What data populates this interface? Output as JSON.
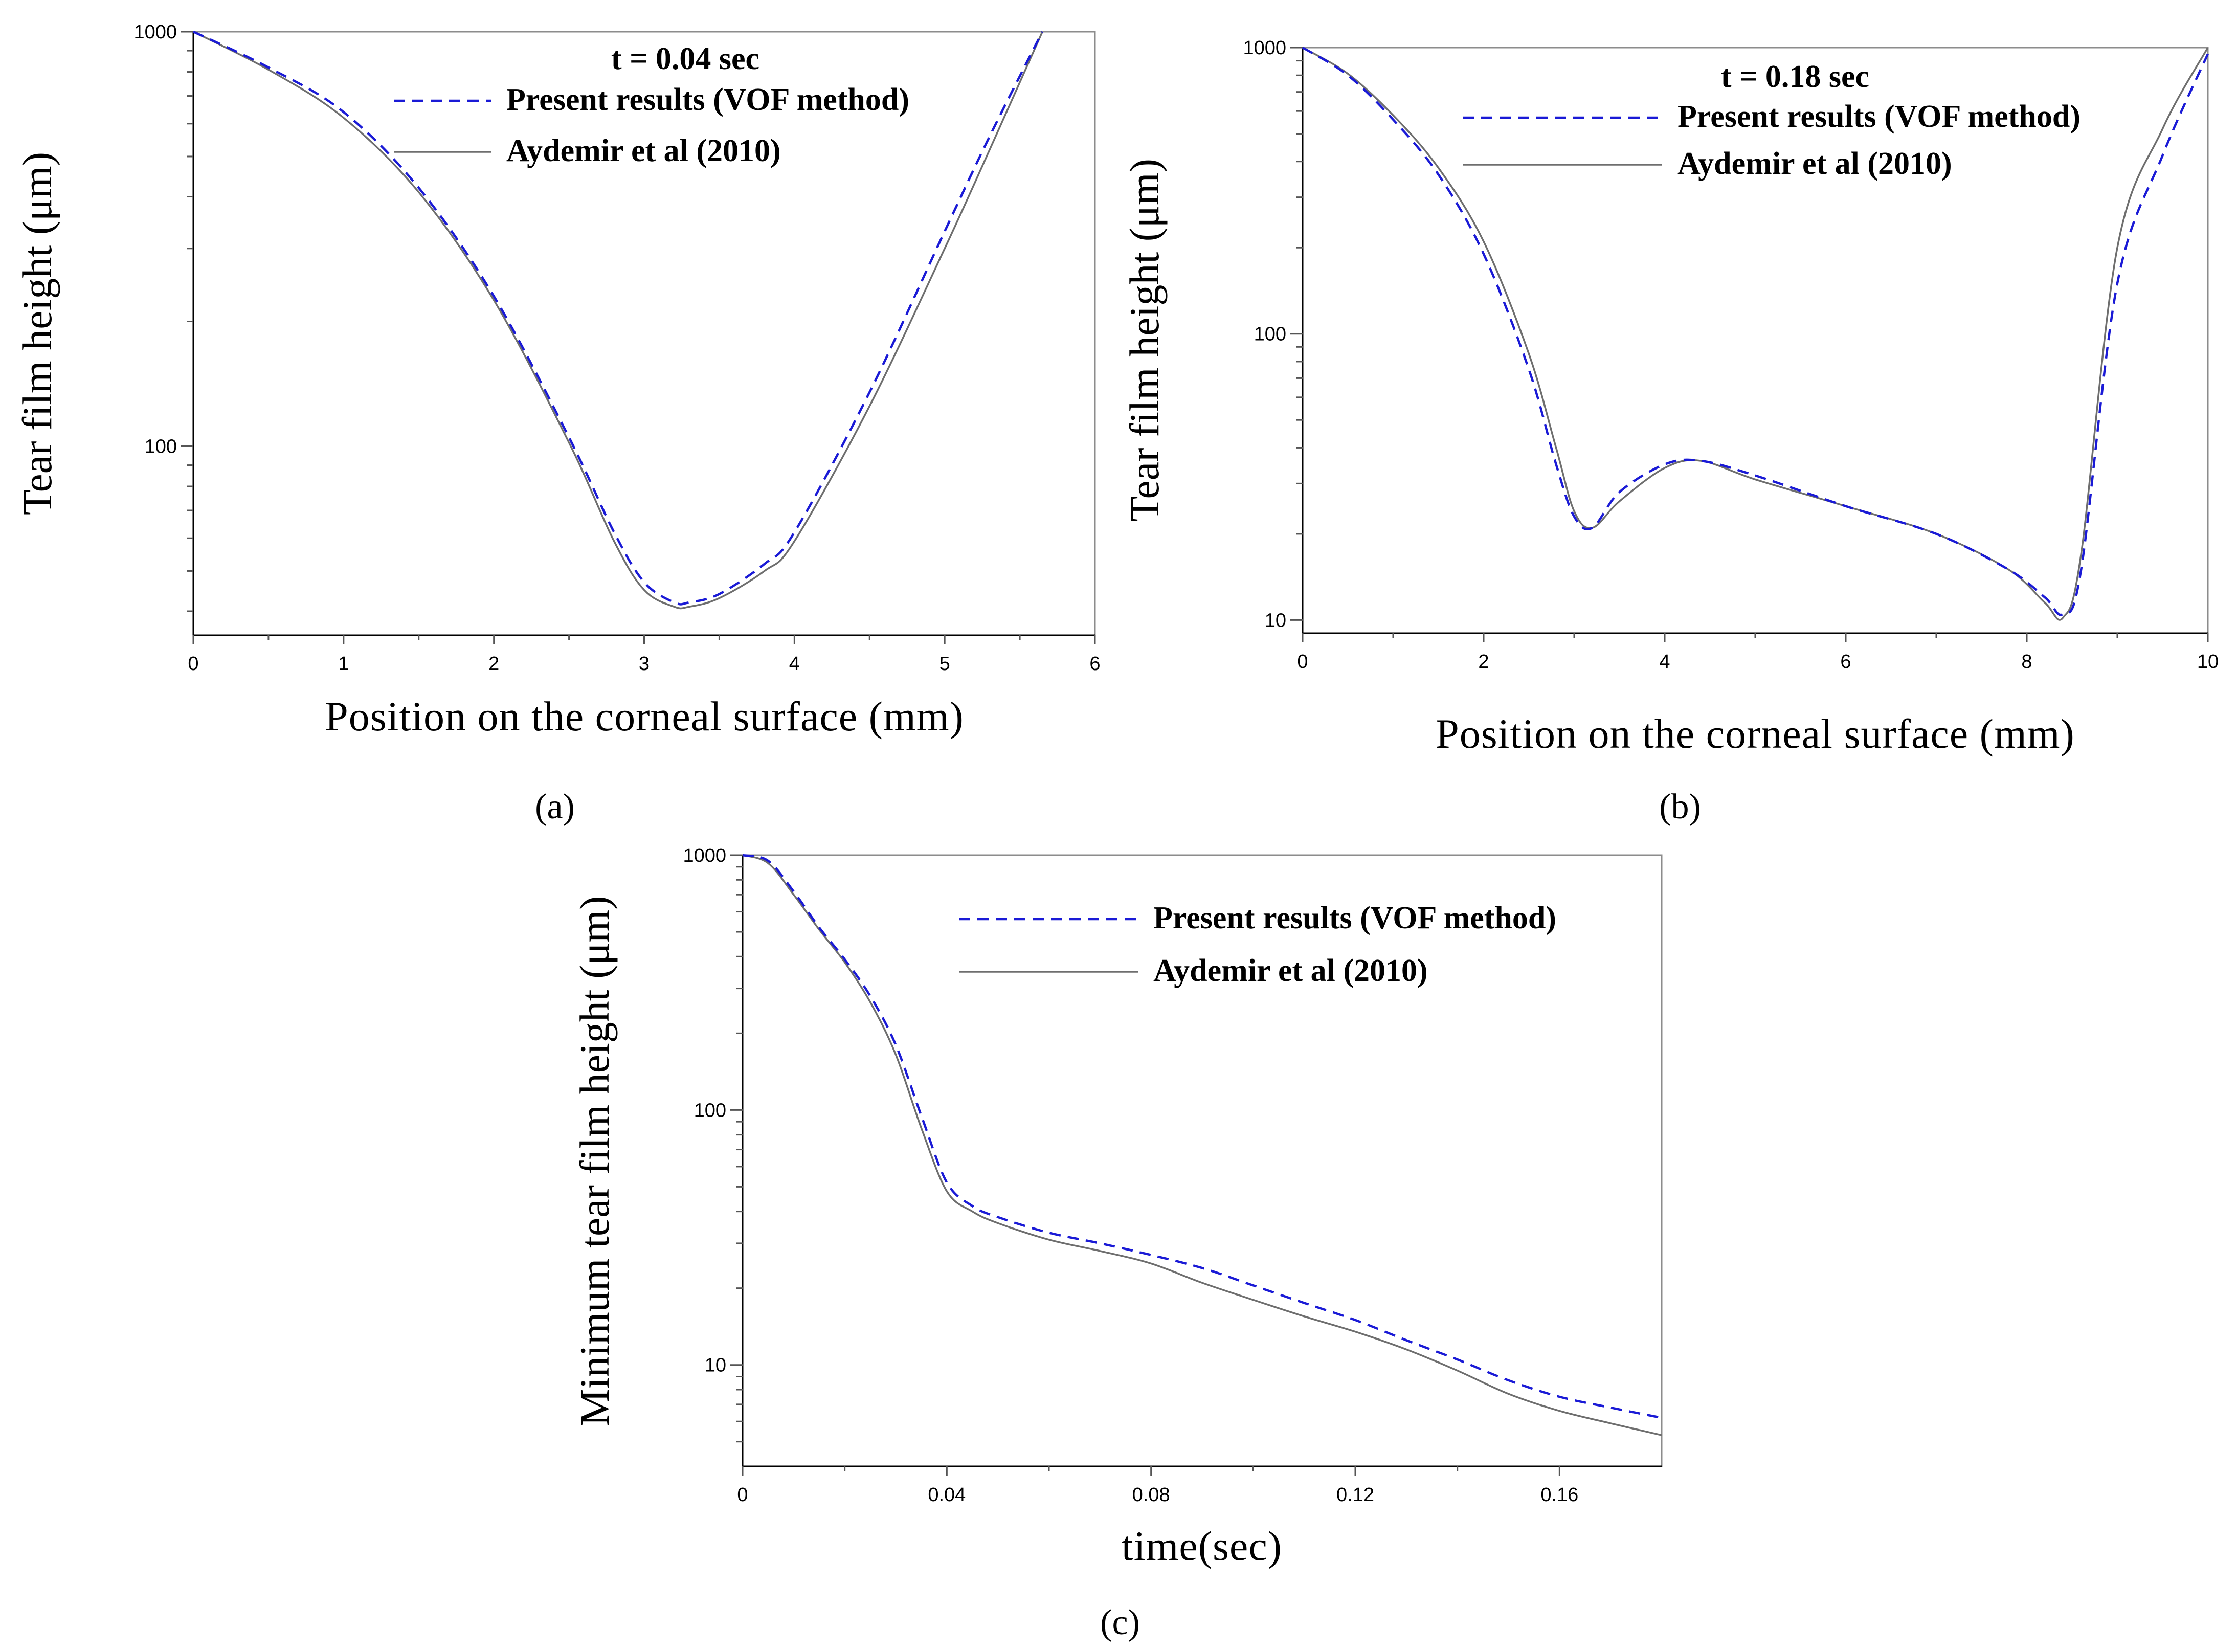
{
  "chart_data": [
    {
      "id": "a",
      "type": "line",
      "panel_label": "(a)",
      "annotation": "t = 0.04 sec",
      "xlabel": "Position on the corneal surface (mm)",
      "ylabel": "Tear film height (μm)",
      "xlim": [
        0,
        6
      ],
      "ylim": [
        35,
        1000
      ],
      "yscale": "log",
      "xticks": [
        "0",
        "1",
        "2",
        "3",
        "4",
        "5",
        "6"
      ],
      "yticks": [
        "100",
        "1000"
      ],
      "legend": [
        "Present results (VOF method)",
        "Aydemir et al (2010)"
      ],
      "series": [
        {
          "name": "Present results (VOF method)",
          "x": [
            0,
            0.5,
            1.0,
            1.5,
            2.0,
            2.5,
            2.8,
            3.0,
            3.2,
            3.3,
            3.5,
            3.8,
            4.0,
            4.5,
            5.0,
            5.3,
            5.65
          ],
          "y": [
            1000,
            820,
            640,
            420,
            230,
            105,
            62,
            47,
            42,
            42,
            44,
            52,
            62,
            135,
            330,
            560,
            1000
          ]
        },
        {
          "name": "Aydemir et al (2010)",
          "x": [
            0,
            0.5,
            1.0,
            1.5,
            2.0,
            2.5,
            2.8,
            3.0,
            3.2,
            3.3,
            3.5,
            3.8,
            4.0,
            4.5,
            5.0,
            5.3,
            5.65
          ],
          "y": [
            1000,
            810,
            620,
            410,
            225,
            102,
            59,
            45,
            41,
            41,
            43,
            50,
            59,
            125,
            300,
            520,
            1000
          ]
        }
      ]
    },
    {
      "id": "b",
      "type": "line",
      "panel_label": "(b)",
      "annotation": "t = 0.18 sec",
      "xlabel": "Position on the corneal surface (mm)",
      "ylabel": "Tear film height (μm)",
      "xlim": [
        0,
        10
      ],
      "ylim": [
        9,
        1000
      ],
      "yscale": "log",
      "xticks": [
        "0",
        "2",
        "4",
        "6",
        "8",
        "10"
      ],
      "yticks": [
        "10",
        "100",
        "1000"
      ],
      "legend": [
        "Present results (VOF method)",
        "Aydemir et al (2010)"
      ],
      "series": [
        {
          "name": "Present results (VOF method)",
          "x": [
            0,
            0.5,
            1.0,
            1.5,
            2.0,
            2.5,
            2.8,
            3.0,
            3.2,
            3.5,
            4.0,
            4.4,
            5.0,
            6.0,
            7.0,
            7.8,
            8.2,
            8.4,
            8.6,
            9.0,
            9.5,
            10.0
          ],
          "y": [
            1000,
            800,
            560,
            360,
            190,
            75,
            35,
            23,
            21,
            28,
            35,
            36,
            32,
            25,
            20,
            15,
            12,
            10.5,
            15,
            150,
            420,
            950
          ]
        },
        {
          "name": "Aydemir et al (2010)",
          "x": [
            0,
            0.5,
            1.0,
            1.5,
            2.0,
            2.5,
            2.8,
            3.0,
            3.2,
            3.5,
            4.0,
            4.4,
            5.0,
            6.0,
            7.0,
            7.8,
            8.2,
            8.4,
            8.6,
            9.0,
            9.5,
            10.0
          ],
          "y": [
            1000,
            810,
            580,
            380,
            210,
            85,
            40,
            24,
            21,
            26,
            34,
            36,
            31,
            25,
            20,
            15,
            11.5,
            10.2,
            17,
            200,
            520,
            1000
          ]
        }
      ]
    },
    {
      "id": "c",
      "type": "line",
      "panel_label": "(c)",
      "annotation": "",
      "xlabel": "time(sec)",
      "ylabel": "Minimum tear film height (μm)",
      "xlim": [
        0,
        0.18
      ],
      "ylim": [
        4,
        1000
      ],
      "yscale": "log",
      "xticks": [
        "0",
        "0.04",
        "0.08",
        "0.12",
        "0.16"
      ],
      "yticks": [
        "10",
        "100",
        "1000"
      ],
      "legend": [
        "Present results (VOF method)",
        "Aydemir et al (2010)"
      ],
      "series": [
        {
          "name": "Present results (VOF method)",
          "x": [
            0,
            0.005,
            0.01,
            0.015,
            0.02,
            0.025,
            0.03,
            0.035,
            0.04,
            0.045,
            0.05,
            0.06,
            0.07,
            0.08,
            0.09,
            0.1,
            0.11,
            0.12,
            0.13,
            0.14,
            0.15,
            0.16,
            0.17,
            0.18
          ],
          "y": [
            1000,
            950,
            720,
            520,
            390,
            280,
            180,
            95,
            52,
            42,
            38,
            33,
            30,
            27,
            24,
            20.5,
            17.5,
            15,
            12.5,
            10.5,
            8.7,
            7.5,
            6.8,
            6.2
          ]
        },
        {
          "name": "Aydemir et al (2010)",
          "x": [
            0,
            0.005,
            0.01,
            0.015,
            0.02,
            0.025,
            0.03,
            0.035,
            0.04,
            0.045,
            0.05,
            0.06,
            0.07,
            0.08,
            0.09,
            0.1,
            0.11,
            0.12,
            0.13,
            0.14,
            0.15,
            0.16,
            0.17,
            0.18
          ],
          "y": [
            1000,
            930,
            700,
            510,
            380,
            265,
            165,
            85,
            48,
            40,
            36,
            31,
            28,
            25,
            21,
            18,
            15.5,
            13.5,
            11.5,
            9.5,
            7.7,
            6.6,
            5.9,
            5.3
          ]
        }
      ]
    }
  ]
}
